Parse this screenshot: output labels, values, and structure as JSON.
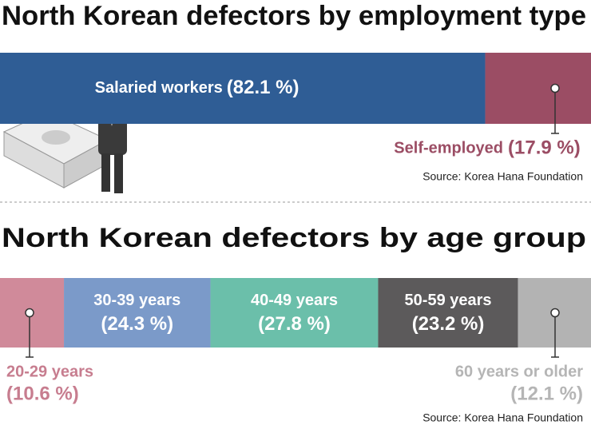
{
  "chart_data": [
    {
      "type": "stacked-bar",
      "title": "North Korean defectors by employment type",
      "categories": [
        "Salaried workers",
        "Self-employed"
      ],
      "values": [
        82.1,
        17.9
      ],
      "value_labels": [
        "(82.1 %)",
        "(17.9 %)"
      ],
      "colors": [
        "#2f5d95",
        "#9b4d64"
      ],
      "source": "Source: Korea Hana Foundation"
    },
    {
      "type": "stacked-bar",
      "title": "North Korean defectors by age group",
      "categories": [
        "20-29 years",
        "30-39 years",
        "40-49 years",
        "50-59 years",
        "60 years or older"
      ],
      "values": [
        10.6,
        24.3,
        27.8,
        23.2,
        12.1
      ],
      "value_labels": [
        "(10.6 %)",
        "(24.3 %)",
        "(27.8 %)",
        "(23.2 %)",
        "(12.1 %)"
      ],
      "colors": [
        "#d08a9a",
        "#7b9ac9",
        "#6bbfaa",
        "#5c5a5b",
        "#b3b3b3"
      ],
      "source": "Source: Korea Hana Foundation"
    }
  ]
}
